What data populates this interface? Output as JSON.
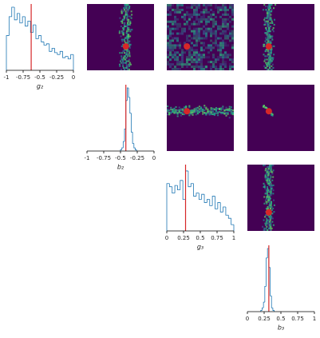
{
  "chart_data": [
    {
      "type": "histogram",
      "row": 0,
      "col": 0,
      "xlabel": "g₂",
      "color": "#1f77b4",
      "reference_color": "#d62728",
      "reference": -0.63,
      "xlim": [
        -1,
        0
      ],
      "ylim": [
        0,
        1
      ],
      "xticks": [
        -1,
        -0.75,
        -0.5,
        -0.25,
        0
      ],
      "bins": [
        -1,
        -0.96,
        -0.92,
        -0.88,
        -0.84,
        -0.8,
        -0.76,
        -0.72,
        -0.68,
        -0.64,
        -0.6,
        -0.56,
        -0.52,
        -0.48,
        -0.44,
        -0.4,
        -0.36,
        -0.32,
        -0.28,
        -0.24,
        -0.2,
        -0.16,
        -0.12,
        -0.08,
        -0.04,
        0
      ],
      "values": [
        0.55,
        0.85,
        1.0,
        0.8,
        0.9,
        0.75,
        0.85,
        0.7,
        0.78,
        0.6,
        0.72,
        0.5,
        0.55,
        0.45,
        0.4,
        0.42,
        0.3,
        0.35,
        0.28,
        0.25,
        0.3,
        0.2,
        0.22,
        0.18,
        0.25
      ]
    },
    {
      "type": "histogram",
      "row": 1,
      "col": 1,
      "xlabel": "b₂",
      "color": "#1f77b4",
      "reference_color": "#d62728",
      "reference": -0.42,
      "xlim": [
        -1,
        0
      ],
      "ylim": [
        0,
        1
      ],
      "xticks": [
        -1,
        -0.75,
        -0.5,
        -0.25,
        0
      ],
      "bins": [
        -0.5,
        -0.48,
        -0.46,
        -0.44,
        -0.42,
        -0.4,
        -0.38,
        -0.36,
        -0.34,
        -0.32,
        -0.3,
        -0.28,
        -0.26
      ],
      "values": [
        0.02,
        0.05,
        0.15,
        0.35,
        0.8,
        1.0,
        0.85,
        0.6,
        0.3,
        0.12,
        0.05,
        0.02
      ]
    },
    {
      "type": "histogram",
      "row": 2,
      "col": 2,
      "xlabel": "g₃",
      "color": "#1f77b4",
      "reference_color": "#d62728",
      "reference": 0.28,
      "xlim": [
        0,
        1
      ],
      "ylim": [
        0,
        1
      ],
      "xticks": [
        0,
        0.25,
        0.5,
        0.75,
        1
      ],
      "bins": [
        0,
        0.04,
        0.08,
        0.12,
        0.16,
        0.2,
        0.24,
        0.28,
        0.32,
        0.36,
        0.4,
        0.44,
        0.48,
        0.52,
        0.56,
        0.6,
        0.64,
        0.68,
        0.72,
        0.76,
        0.8,
        0.84,
        0.88,
        0.92,
        0.96,
        1
      ],
      "values": [
        0.75,
        0.7,
        0.6,
        0.72,
        0.65,
        0.8,
        0.5,
        0.95,
        0.7,
        0.75,
        0.55,
        0.6,
        0.5,
        0.58,
        0.45,
        0.5,
        0.4,
        0.55,
        0.35,
        0.45,
        0.3,
        0.38,
        0.25,
        0.2,
        0.1
      ]
    },
    {
      "type": "histogram",
      "row": 3,
      "col": 3,
      "xlabel": "b₃",
      "color": "#1f77b4",
      "reference_color": "#d62728",
      "reference": 0.32,
      "xlim": [
        0,
        1
      ],
      "ylim": [
        0,
        1
      ],
      "xticks": [
        0,
        0.25,
        0.5,
        0.75,
        1
      ],
      "bins": [
        0.2,
        0.22,
        0.24,
        0.26,
        0.28,
        0.3,
        0.32,
        0.34,
        0.36,
        0.38,
        0.4
      ],
      "values": [
        0.02,
        0.06,
        0.15,
        0.4,
        0.85,
        1.0,
        0.7,
        0.25,
        0.06,
        0.02
      ]
    },
    {
      "type": "heatmap",
      "row": 0,
      "col": 1,
      "pattern": "vertical",
      "xlim": [
        -1,
        0
      ],
      "ylim": [
        -1,
        0
      ],
      "point": [
        -0.42,
        -0.64
      ],
      "color": "#440154",
      "point_color": "#d62728"
    },
    {
      "type": "heatmap",
      "row": 0,
      "col": 2,
      "pattern": "uniform",
      "xlim": [
        0,
        1
      ],
      "ylim": [
        -1,
        0
      ],
      "point": [
        0.3,
        -0.64
      ],
      "color": "#440154",
      "point_color": "#d62728"
    },
    {
      "type": "heatmap",
      "row": 0,
      "col": 3,
      "pattern": "vertical",
      "xlim": [
        0,
        1
      ],
      "ylim": [
        -1,
        0
      ],
      "point": [
        0.32,
        -0.64
      ],
      "color": "#440154",
      "point_color": "#d62728"
    },
    {
      "type": "heatmap",
      "row": 1,
      "col": 2,
      "pattern": "horizontal",
      "xlim": [
        0,
        1
      ],
      "ylim": [
        -1,
        0
      ],
      "point": [
        0.3,
        -0.4
      ],
      "color": "#440154",
      "point_color": "#d62728"
    },
    {
      "type": "heatmap",
      "row": 1,
      "col": 3,
      "pattern": "blob",
      "xlim": [
        0,
        1
      ],
      "ylim": [
        -1,
        0
      ],
      "point": [
        0.32,
        -0.4
      ],
      "color": "#440154",
      "point_color": "#d62728"
    },
    {
      "type": "heatmap",
      "row": 2,
      "col": 3,
      "pattern": "vertical",
      "xlim": [
        0,
        1
      ],
      "ylim": [
        0,
        1
      ],
      "point": [
        0.32,
        0.28
      ],
      "color": "#440154",
      "point_color": "#d62728"
    }
  ]
}
